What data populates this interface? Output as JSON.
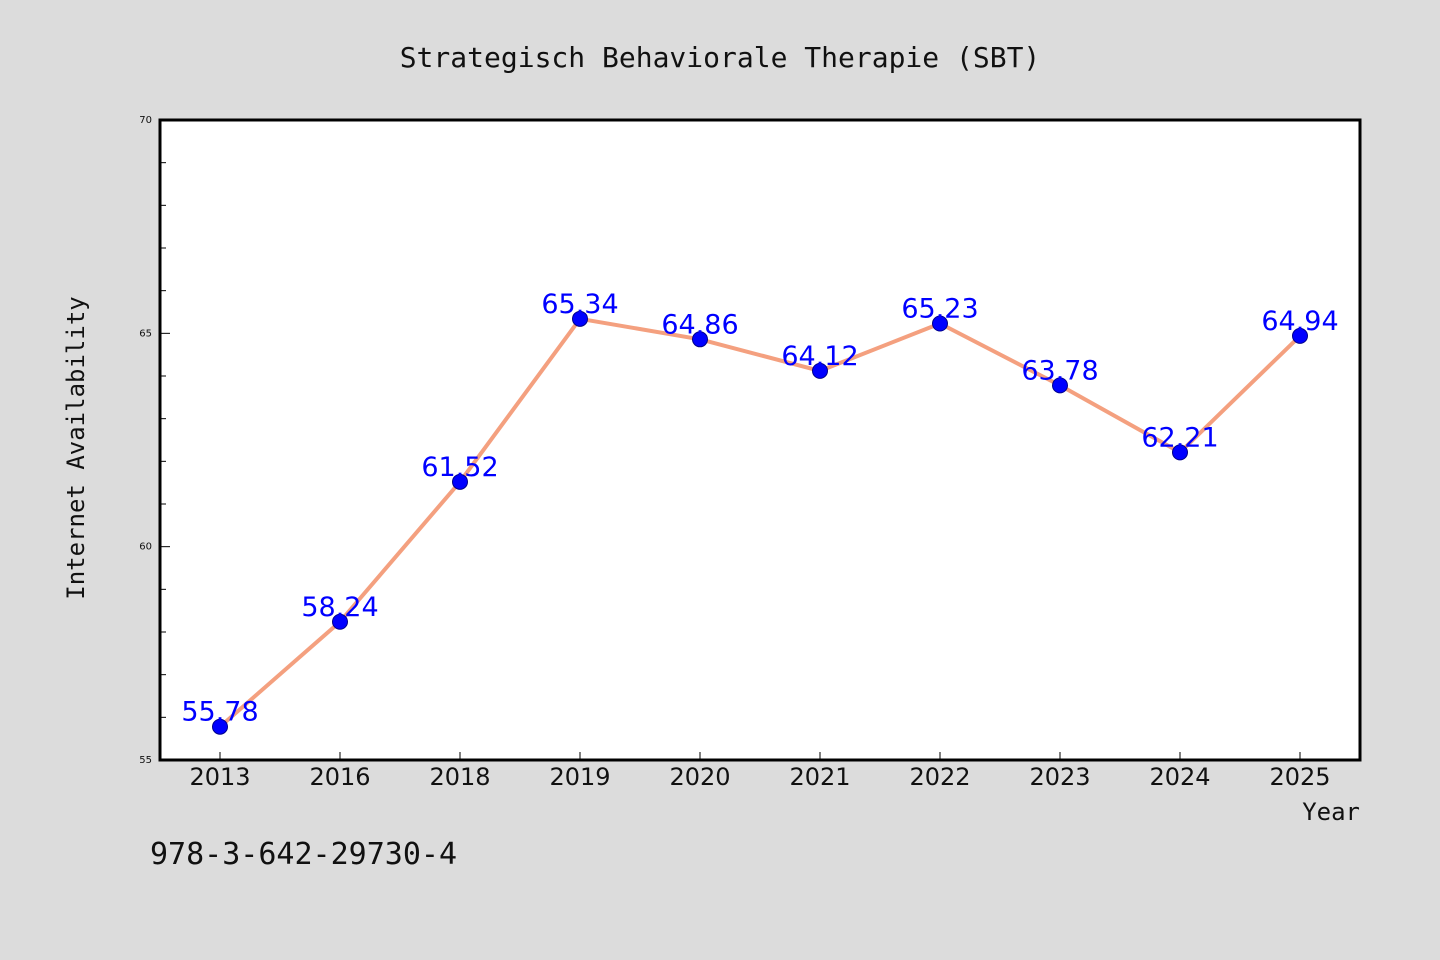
{
  "colors": {
    "background": "#dcdcdc",
    "plot_background": "#ffffff",
    "line": "#f4a07f",
    "marker": "#0000ff",
    "data_label": "#0000ff",
    "frame": "#000000"
  },
  "footnote": "978-3-642-29730-4",
  "chart_data": {
    "type": "line",
    "title": "Strategisch Behaviorale Therapie (SBT)",
    "xlabel": "Year",
    "ylabel": "Internet Availability",
    "categories": [
      "2013",
      "2016",
      "2018",
      "2019",
      "2020",
      "2021",
      "2022",
      "2023",
      "2024",
      "2025"
    ],
    "series": [
      {
        "values": [
          55.78,
          58.24,
          61.52,
          65.34,
          64.86,
          64.12,
          65.23,
          63.78,
          62.21,
          64.94
        ],
        "labels": [
          "55.78",
          "58.24",
          "61.52",
          "65.34",
          "64.86",
          "64.12",
          "65.23",
          "63.78",
          "62.21",
          "64.94"
        ]
      }
    ],
    "ylim": [
      55,
      70
    ],
    "yticks": [
      "55",
      "60",
      "65",
      "70"
    ],
    "ytick_values": [
      55,
      60,
      65,
      70
    ],
    "yminor_step": 1,
    "grid": false,
    "legend": "none"
  }
}
